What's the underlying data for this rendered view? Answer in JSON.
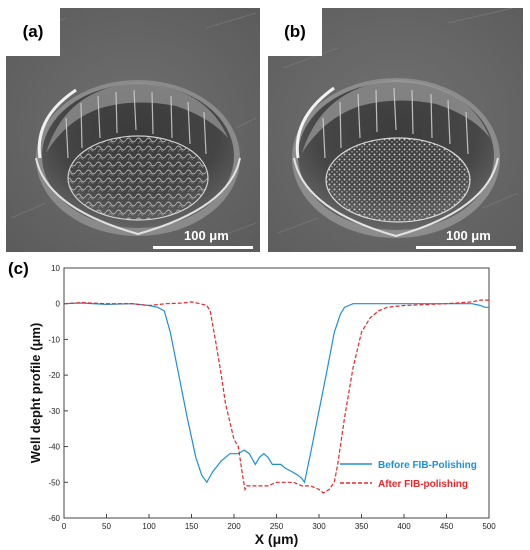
{
  "figure": {
    "panel_a": {
      "label": "(a)",
      "scale_label": "100 μm"
    },
    "panel_b": {
      "label": "(b)",
      "scale_label": "100 μm"
    },
    "panel_c": {
      "label": "(c)"
    }
  },
  "chart_data": {
    "type": "line",
    "title": "",
    "xlabel": "X (μm)",
    "ylabel": "Well depht profile (μm)",
    "xlim": [
      0,
      500
    ],
    "ylim": [
      -60,
      10
    ],
    "xticks": [
      0,
      50,
      100,
      150,
      200,
      250,
      300,
      350,
      400,
      450,
      500
    ],
    "yticks": [
      10,
      0,
      -10,
      -20,
      -30,
      -40,
      -50,
      -60
    ],
    "grid": false,
    "legend_position": "bottom-right",
    "series": [
      {
        "name": "Before FIB-Polishing",
        "color": "#1e90d6",
        "style": "solid",
        "x": [
          0,
          20,
          50,
          80,
          100,
          110,
          118,
          125,
          135,
          145,
          155,
          162,
          168,
          175,
          185,
          195,
          205,
          212,
          218,
          225,
          230,
          235,
          240,
          245,
          250,
          255,
          260,
          268,
          275,
          280,
          283,
          290,
          300,
          310,
          318,
          325,
          330,
          335,
          340,
          350,
          400,
          450,
          480,
          490,
          495,
          500
        ],
        "y": [
          0,
          0.2,
          -0.2,
          0,
          -0.5,
          -1,
          -2,
          -8,
          -20,
          -32,
          -43,
          -48,
          -50,
          -47,
          -44,
          -42,
          -42,
          -41,
          -42,
          -45,
          -43,
          -42,
          -43,
          -45,
          -45,
          -45,
          -46,
          -47,
          -48,
          -49,
          -50,
          -42,
          -30,
          -18,
          -8,
          -3,
          -1,
          -0.5,
          0,
          0,
          0,
          0,
          0,
          -0.5,
          -1,
          -1
        ]
      },
      {
        "name": "After FIB-polishing",
        "color": "#e8262b",
        "style": "dashed",
        "x": [
          0,
          20,
          50,
          80,
          100,
          120,
          140,
          150,
          160,
          168,
          172,
          178,
          185,
          190,
          195,
          200,
          205,
          210,
          213,
          215,
          220,
          230,
          240,
          250,
          260,
          270,
          280,
          290,
          300,
          305,
          312,
          318,
          322,
          330,
          340,
          350,
          360,
          370,
          380,
          400,
          450,
          480,
          490,
          500
        ],
        "y": [
          0,
          0.3,
          0,
          0,
          -0.5,
          0,
          0.2,
          0.5,
          0,
          -0.5,
          -2,
          -10,
          -20,
          -28,
          -33,
          -38,
          -40,
          -48,
          -52,
          -51,
          -51,
          -51,
          -51,
          -50,
          -50,
          -50,
          -51,
          -51,
          -52,
          -53,
          -52,
          -50,
          -45,
          -32,
          -18,
          -8,
          -4,
          -2,
          -1,
          -0.5,
          0,
          0.5,
          1,
          1
        ]
      }
    ]
  }
}
